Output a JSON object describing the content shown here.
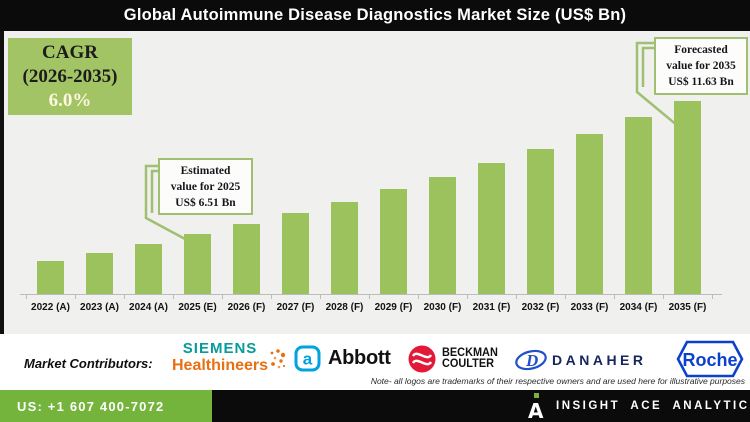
{
  "header": {
    "title": "Global Autoimmune Disease Diagnostics Market Size (US$ Bn)"
  },
  "cagr_box": {
    "line1": "CAGR",
    "line2": "(2026-2035)",
    "line3": "6.0%"
  },
  "callouts": {
    "estimated": {
      "line1": "Estimated",
      "line2": "value for 2025",
      "line3": "US$ 6.51 Bn"
    },
    "forecasted": {
      "line1": "Forecasted",
      "line2": "value for 2035",
      "line3": "US$ 11.63 Bn"
    }
  },
  "chart_data": {
    "type": "bar",
    "title": "Global Autoimmune Disease Diagnostics Market Size (US$ Bn)",
    "categories": [
      "2022 (A)",
      "2023 (A)",
      "2024 (A)",
      "2025 (E)",
      "2026 (F)",
      "2027 (F)",
      "2028 (F)",
      "2029 (F)",
      "2030 (F)",
      "2031 (F)",
      "2032 (F)",
      "2033 (F)",
      "2034 (F)",
      "2035 (F)"
    ],
    "values": [
      5.47,
      5.79,
      6.14,
      6.51,
      6.9,
      7.31,
      7.75,
      8.22,
      8.71,
      9.23,
      9.79,
      10.37,
      10.99,
      11.63
    ],
    "labeled_values": {
      "2025 (E)": 6.51,
      "2035 (F)": 11.63
    },
    "cagr_2026_2035_pct": 6.0,
    "xlabel": "",
    "ylabel": "US$ Bn",
    "ylim": [
      4.2,
      12.2
    ],
    "grid": false,
    "legend": false,
    "bar_color": "#9cc25e"
  },
  "contributors": {
    "label": "Market Contributors:",
    "companies": [
      "Siemens Healthineers",
      "Abbott",
      "Beckman Coulter",
      "Danaher",
      "Roche"
    ],
    "siemens": {
      "line1": "SIEMENS",
      "line2": "Healthineers"
    },
    "abbott": {
      "icon_letter": "a",
      "text": "Abbott"
    },
    "beckman": {
      "line1": "BECKMAN",
      "line2": "COULTER"
    },
    "danaher": {
      "icon_letter": "D",
      "text": "DANAHER"
    },
    "roche": {
      "text": "Roche"
    },
    "note": "Note- all logos are trademarks of their respective owners and are used here for illustrative purposes"
  },
  "footer": {
    "phone": "US: +1 607 400-7072",
    "brand_icon_letter": "A",
    "brand": "INSIGHT ACE ANALYTIC"
  },
  "colors": {
    "bar_green": "#9cc25e",
    "cagr_box_green": "#a2c464",
    "callout_border_green": "#a0bf72",
    "footer_green": "#74b33c",
    "title_bg": "#0b0b0b",
    "chart_bg": "#f0f0ee",
    "siemens_teal": "#089b9b",
    "healthineers_orange": "#e96f13",
    "abbott_blue": "#00a3df",
    "beckman_red": "#e31937",
    "danaher_blue": "#2150c8",
    "roche_blue": "#0b41cd"
  }
}
